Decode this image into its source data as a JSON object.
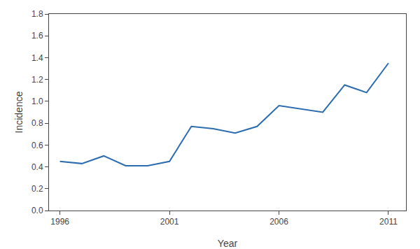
{
  "chart_data": {
    "type": "line",
    "x": [
      1996,
      1997,
      1998,
      1999,
      2000,
      2001,
      2002,
      2003,
      2004,
      2005,
      2006,
      2007,
      2008,
      2009,
      2010,
      2011
    ],
    "values": [
      0.45,
      0.43,
      0.5,
      0.41,
      0.41,
      0.45,
      0.77,
      0.75,
      0.71,
      0.77,
      0.96,
      0.93,
      0.9,
      1.15,
      1.08,
      1.35
    ],
    "color": "#2B6CB0",
    "xlabel": "Year",
    "ylabel": "Incidence",
    "xlim": [
      1995.5,
      2011.8
    ],
    "ylim": [
      0.0,
      1.8
    ],
    "xticks": [
      1996,
      2001,
      2006,
      2011
    ],
    "yticks": [
      {
        "value": 0,
        "label": "0.0"
      },
      0.2,
      0.4,
      0.6,
      0.8,
      {
        "value": 1,
        "label": "1.0"
      },
      1.2,
      1.4,
      1.6,
      1.8
    ],
    "grid": false
  }
}
